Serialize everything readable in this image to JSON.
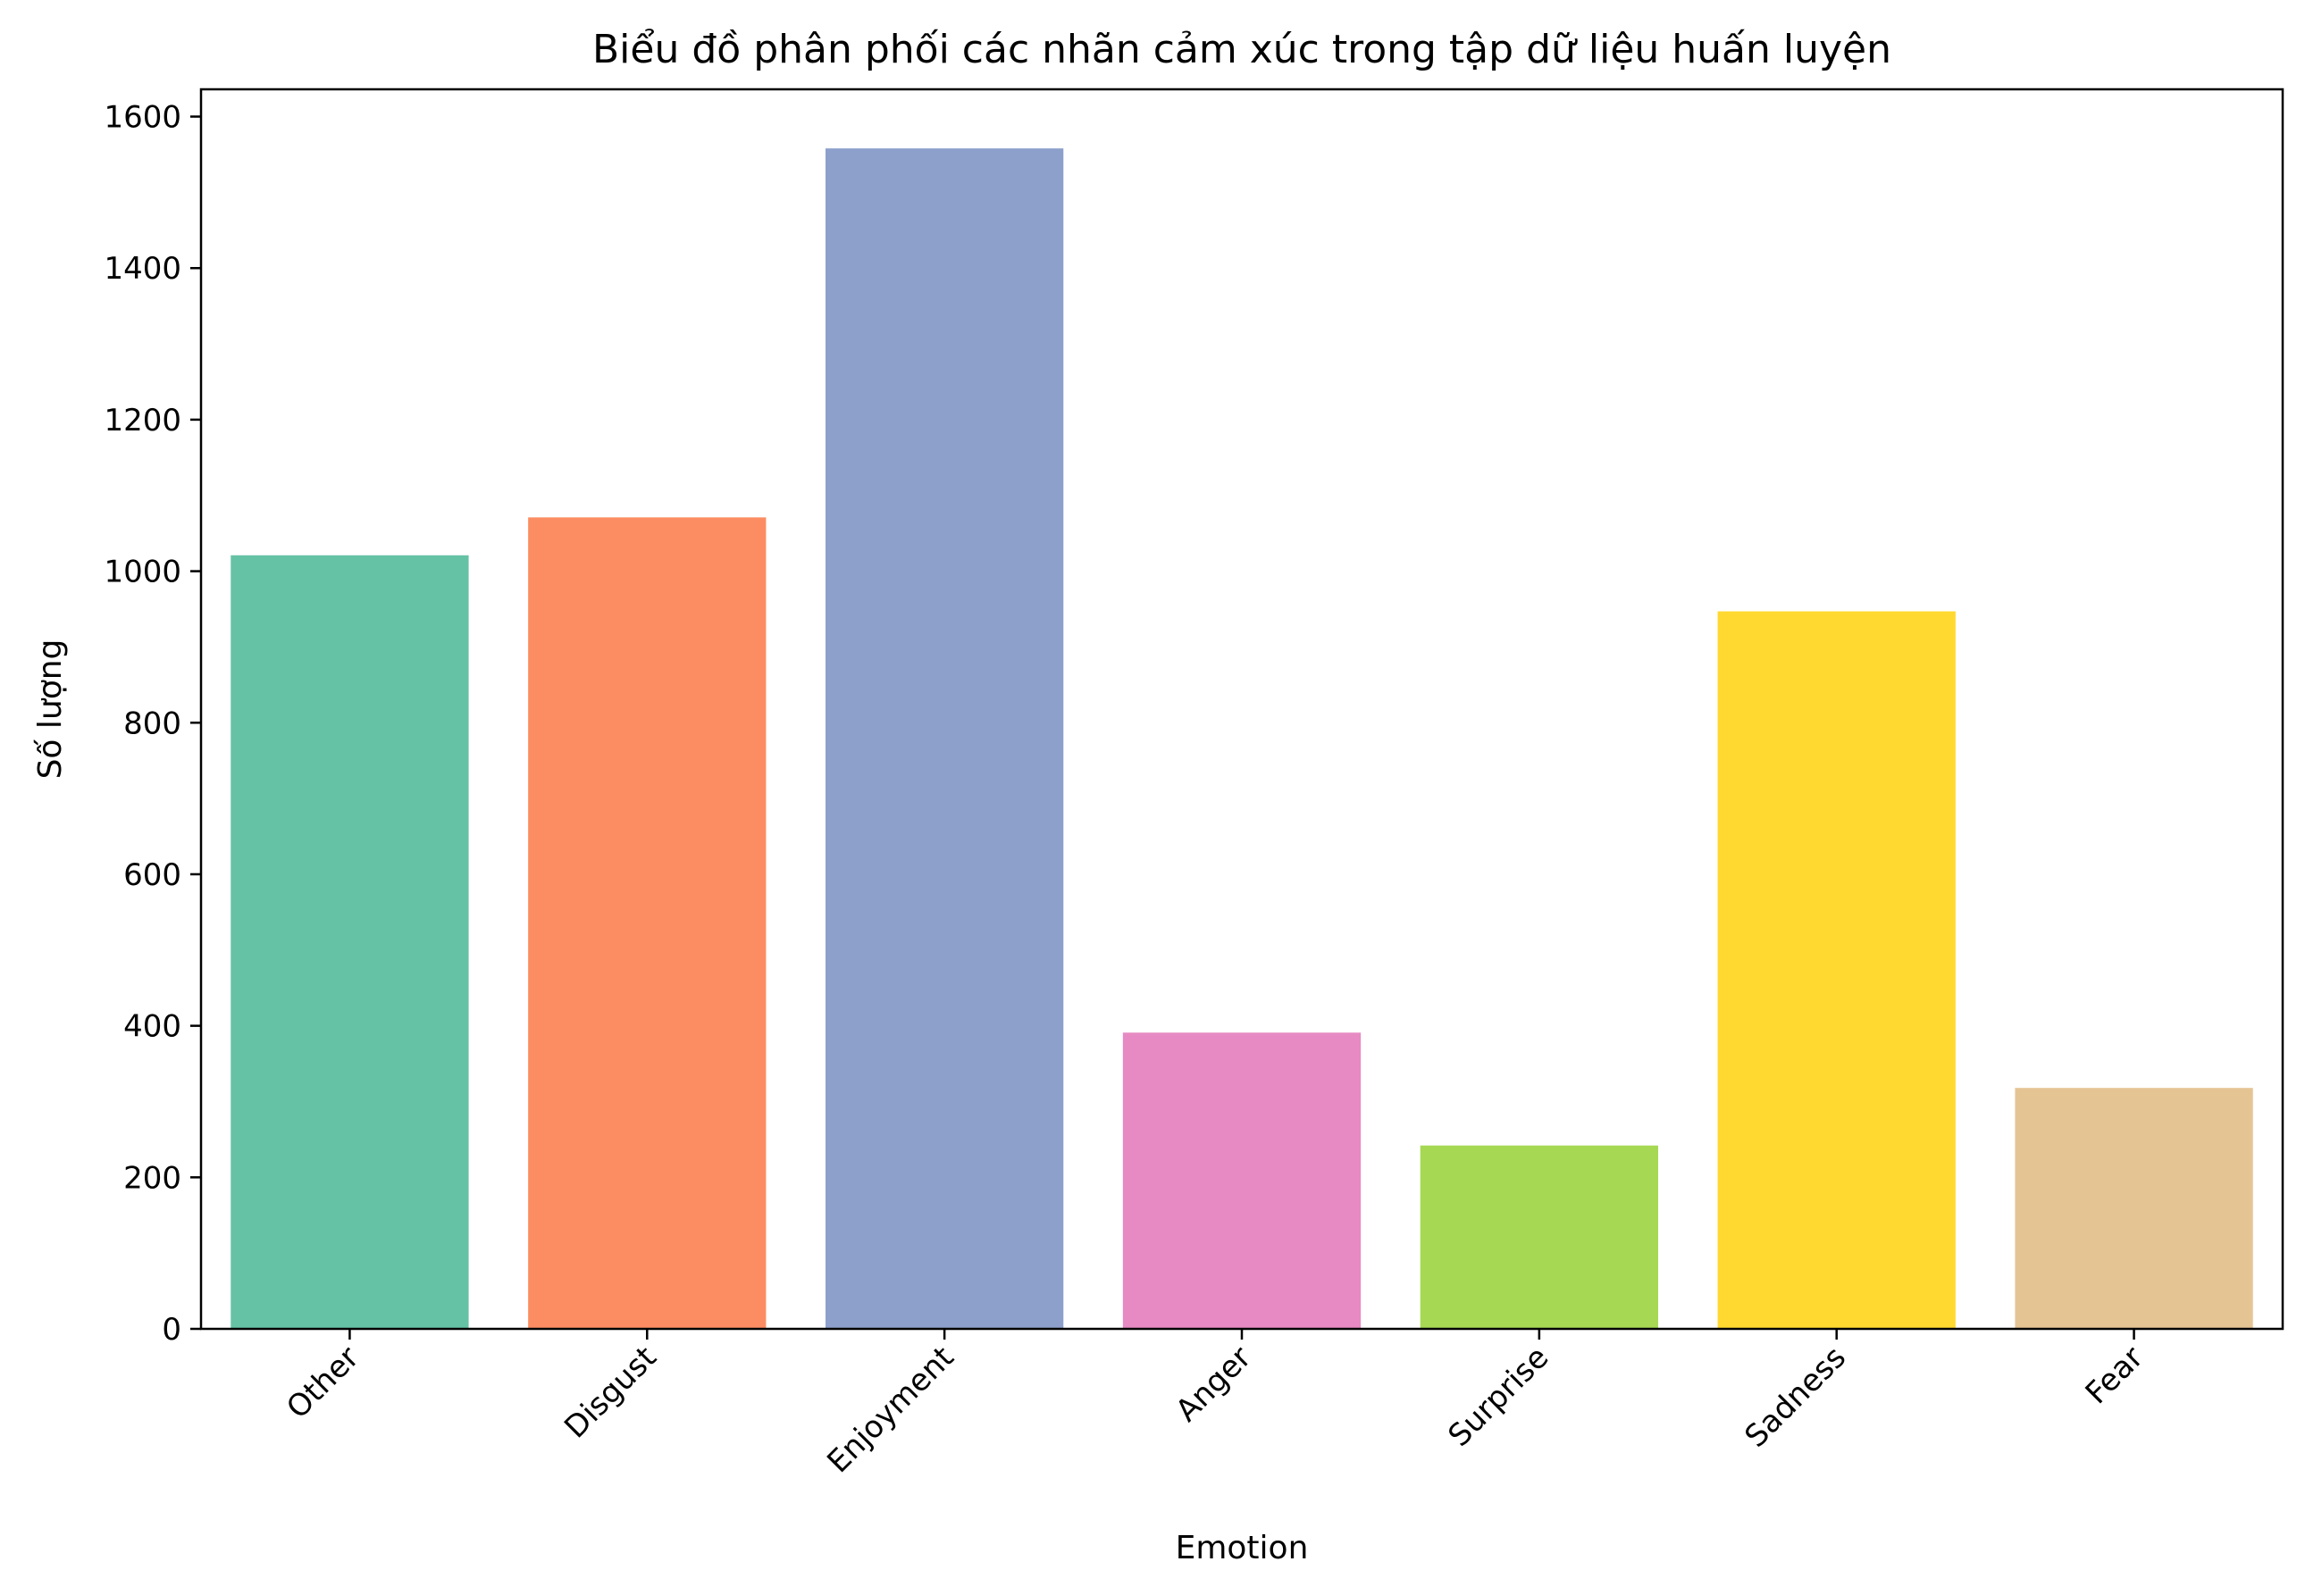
{
  "chart_data": {
    "type": "bar",
    "title": "Biểu đồ phân phối các nhãn cảm xúc trong tập dữ liệu huấn luyện",
    "xlabel": "Emotion",
    "ylabel": "Số lượng",
    "categories": [
      "Other",
      "Disgust",
      "Enjoyment",
      "Anger",
      "Surprise",
      "Sadness",
      "Fear"
    ],
    "values": [
      1021,
      1071,
      1558,
      391,
      242,
      947,
      318
    ],
    "colors": [
      "#66c2a5",
      "#fc8d62",
      "#8da0cb",
      "#e78ac3",
      "#a6d854",
      "#ffd92f",
      "#e5c494"
    ],
    "ylim": [
      0,
      1636
    ],
    "yticks": [
      0,
      200,
      400,
      600,
      800,
      1000,
      1200,
      1400,
      1600
    ],
    "grid": false,
    "legend": "none"
  }
}
